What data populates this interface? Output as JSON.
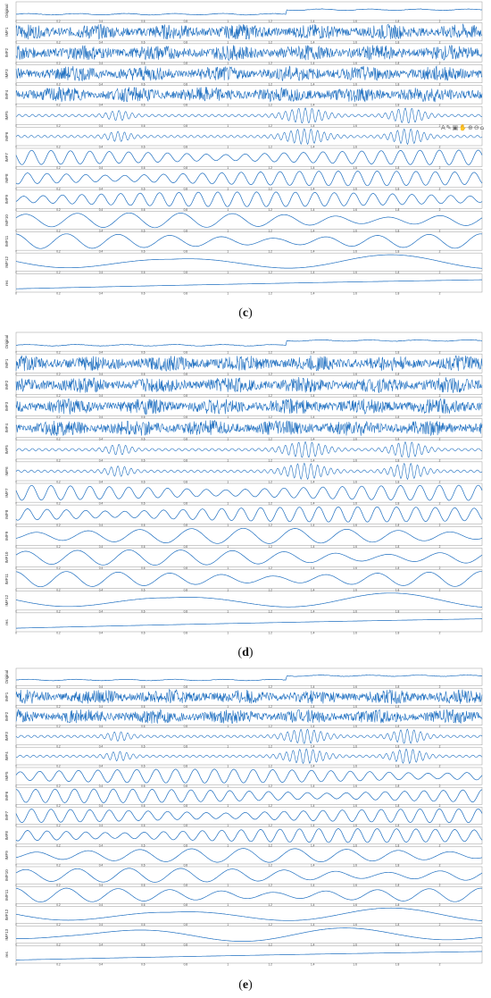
{
  "chart_data": [
    {
      "type": "line",
      "panel": "c",
      "xticks": [
        "0",
        "0.2",
        "0.4",
        "0.6",
        "0.8",
        "1",
        "1.2",
        "1.4",
        "1.6",
        "1.8",
        "2"
      ],
      "xrange": [
        0,
        2.2
      ],
      "series": [
        {
          "name": "Original",
          "kind": "signal"
        },
        {
          "name": "IMF1",
          "kind": "dense"
        },
        {
          "name": "IMF2",
          "kind": "dense"
        },
        {
          "name": "IMF3",
          "kind": "dense"
        },
        {
          "name": "IMF4",
          "kind": "dense"
        },
        {
          "name": "IMF5",
          "kind": "burst"
        },
        {
          "name": "IMF6",
          "kind": "burst"
        },
        {
          "name": "IMF7",
          "kind": "osc"
        },
        {
          "name": "IMF8",
          "kind": "osc"
        },
        {
          "name": "IMF9",
          "kind": "osc"
        },
        {
          "name": "IMF10",
          "kind": "wave"
        },
        {
          "name": "IMF11",
          "kind": "wave"
        },
        {
          "name": "IMF12",
          "kind": "slow"
        },
        {
          "name": "res",
          "kind": "trend"
        }
      ]
    },
    {
      "type": "line",
      "panel": "d",
      "xticks": [
        "0",
        "0.2",
        "0.4",
        "0.6",
        "0.8",
        "1",
        "1.2",
        "1.4",
        "1.6",
        "1.8",
        "2"
      ],
      "xrange": [
        0,
        2.2
      ],
      "series": [
        {
          "name": "Original",
          "kind": "signal"
        },
        {
          "name": "IMF1",
          "kind": "dense"
        },
        {
          "name": "IMF2",
          "kind": "dense"
        },
        {
          "name": "IMF3",
          "kind": "dense"
        },
        {
          "name": "IMF4",
          "kind": "dense"
        },
        {
          "name": "IMF5",
          "kind": "burst"
        },
        {
          "name": "IMF6",
          "kind": "burst"
        },
        {
          "name": "IMF7",
          "kind": "osc"
        },
        {
          "name": "IMF8",
          "kind": "osc"
        },
        {
          "name": "IMF9",
          "kind": "wave"
        },
        {
          "name": "IMF10",
          "kind": "wave"
        },
        {
          "name": "IMF11",
          "kind": "wave"
        },
        {
          "name": "IMF12",
          "kind": "slow"
        },
        {
          "name": "res",
          "kind": "trend"
        }
      ]
    },
    {
      "type": "line",
      "panel": "e",
      "xticks": [
        "0",
        "0.2",
        "0.4",
        "0.6",
        "0.8",
        "1",
        "1.2",
        "1.4",
        "1.6",
        "1.8",
        "2"
      ],
      "xrange": [
        0,
        2.2
      ],
      "series": [
        {
          "name": "Original",
          "kind": "signal"
        },
        {
          "name": "IMF1",
          "kind": "dense"
        },
        {
          "name": "IMF2",
          "kind": "dense"
        },
        {
          "name": "IMF3",
          "kind": "burst"
        },
        {
          "name": "IMF4",
          "kind": "burst"
        },
        {
          "name": "IMF5",
          "kind": "osc"
        },
        {
          "name": "IMF6",
          "kind": "osc"
        },
        {
          "name": "IMF7",
          "kind": "osc"
        },
        {
          "name": "IMF8",
          "kind": "osc"
        },
        {
          "name": "IMF9",
          "kind": "wave"
        },
        {
          "name": "IMF10",
          "kind": "wave"
        },
        {
          "name": "IMF11",
          "kind": "wave"
        },
        {
          "name": "IMF12",
          "kind": "slow"
        },
        {
          "name": "IMF13",
          "kind": "slow"
        },
        {
          "name": "res",
          "kind": "trend"
        }
      ]
    }
  ],
  "captions": {
    "c": "c",
    "d": "d",
    "e": "e"
  },
  "toolbar_icons": [
    "text-icon",
    "brush-icon",
    "datatip-icon",
    "pan-icon",
    "zoom-in-icon",
    "zoom-out-icon",
    "home-icon"
  ],
  "line_color": "#1f6fc0"
}
